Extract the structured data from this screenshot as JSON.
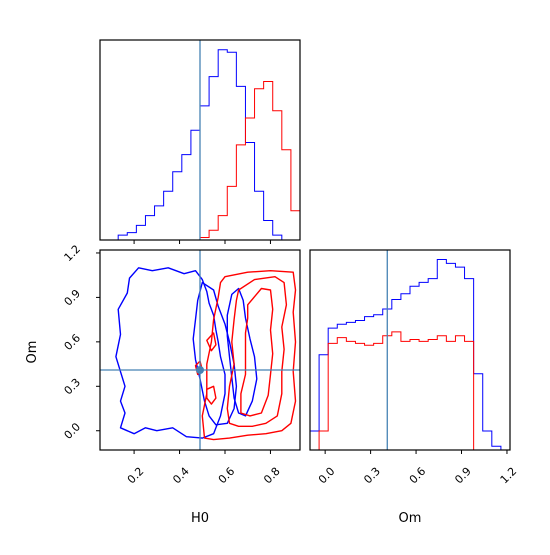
{
  "chart_data": {
    "type": "corner",
    "parameters": [
      "H0",
      "Om"
    ],
    "truth": {
      "H0": 0.49,
      "Om": 0.41
    },
    "truth_color": "#4682b4",
    "series": [
      {
        "color": "#0000ff"
      },
      {
        "color": "#ff0000"
      }
    ],
    "panels": {
      "H0_hist": {
        "xlim": [
          0.05,
          0.93
        ],
        "bin_edges": [
          0.05,
          0.09,
          0.13,
          0.17,
          0.21,
          0.25,
          0.29,
          0.33,
          0.37,
          0.41,
          0.45,
          0.49,
          0.53,
          0.57,
          0.61,
          0.65,
          0.69,
          0.73,
          0.77,
          0.81,
          0.85,
          0.89,
          0.93
        ],
        "blue_counts": [
          0,
          0,
          0.02,
          0.03,
          0.06,
          0.1,
          0.14,
          0.2,
          0.28,
          0.35,
          0.45,
          0.55,
          0.67,
          0.78,
          0.77,
          0.63,
          0.4,
          0.2,
          0.08,
          0.02,
          0,
          0
        ],
        "red_counts": [
          0,
          0,
          0,
          0,
          0,
          0,
          0,
          0,
          0,
          0,
          0,
          0.01,
          0.04,
          0.1,
          0.22,
          0.39,
          0.5,
          0.62,
          0.65,
          0.53,
          0.37,
          0.12
        ]
      },
      "Om_hist": {
        "xlim": [
          -0.1,
          1.22
        ],
        "xticks": [
          0.0,
          0.3,
          0.6,
          0.9,
          1.2
        ],
        "xtick_labels": [
          "0.0",
          "0.3",
          "0.6",
          "0.9",
          "1.2"
        ],
        "bin_edges": [
          -0.1,
          -0.04,
          0.02,
          0.08,
          0.14,
          0.2,
          0.26,
          0.32,
          0.38,
          0.44,
          0.5,
          0.56,
          0.62,
          0.68,
          0.74,
          0.8,
          0.86,
          0.92,
          0.98,
          1.04,
          1.1,
          1.16,
          1.22
        ],
        "blue_counts": [
          0.1,
          0.5,
          0.64,
          0.66,
          0.67,
          0.68,
          0.7,
          0.71,
          0.74,
          0.79,
          0.82,
          0.86,
          0.88,
          0.9,
          1.0,
          0.98,
          0.96,
          0.9,
          0.4,
          0.1,
          0.02,
          0
        ],
        "red_counts": [
          0,
          0.1,
          0.56,
          0.59,
          0.57,
          0.56,
          0.55,
          0.56,
          0.6,
          0.62,
          0.57,
          0.58,
          0.57,
          0.58,
          0.6,
          0.57,
          0.6,
          0.57,
          0,
          0,
          0,
          0
        ]
      },
      "joint": {
        "xlim": [
          0.05,
          0.93
        ],
        "ylim": [
          -0.13,
          1.22
        ],
        "xticks": [
          0.2,
          0.4,
          0.6,
          0.8
        ],
        "xtick_labels": [
          "0.2",
          "0.4",
          "0.6",
          "0.8"
        ],
        "yticks": [
          0.0,
          0.3,
          0.6,
          0.9,
          1.2
        ],
        "ytick_labels": [
          "0.0",
          "0.3",
          "0.6",
          "0.9",
          "1.2"
        ],
        "blue_contours": [
          [
            [
              0.18,
              1.03
            ],
            [
              0.22,
              1.1
            ],
            [
              0.28,
              1.08
            ],
            [
              0.35,
              1.1
            ],
            [
              0.42,
              1.06
            ],
            [
              0.47,
              1.08
            ],
            [
              0.5,
              1.02
            ],
            [
              0.52,
              0.94
            ],
            [
              0.53,
              0.86
            ],
            [
              0.55,
              0.78
            ],
            [
              0.56,
              0.68
            ],
            [
              0.57,
              0.6
            ],
            [
              0.58,
              0.5
            ],
            [
              0.6,
              0.38
            ],
            [
              0.6,
              0.25
            ],
            [
              0.58,
              0.1
            ],
            [
              0.55,
              -0.02
            ],
            [
              0.5,
              -0.05
            ],
            [
              0.43,
              -0.04
            ],
            [
              0.37,
              0.02
            ],
            [
              0.3,
              0.0
            ],
            [
              0.25,
              0.02
            ],
            [
              0.2,
              -0.02
            ],
            [
              0.14,
              0.02
            ],
            [
              0.16,
              0.12
            ],
            [
              0.14,
              0.2
            ],
            [
              0.16,
              0.3
            ],
            [
              0.12,
              0.5
            ],
            [
              0.14,
              0.65
            ],
            [
              0.13,
              0.82
            ],
            [
              0.17,
              0.93
            ]
          ],
          [
            [
              0.5,
              1.0
            ],
            [
              0.55,
              0.95
            ],
            [
              0.57,
              0.84
            ],
            [
              0.6,
              0.72
            ],
            [
              0.62,
              0.6
            ],
            [
              0.64,
              0.45
            ],
            [
              0.65,
              0.3
            ],
            [
              0.64,
              0.15
            ],
            [
              0.61,
              0.05
            ],
            [
              0.56,
              0.04
            ],
            [
              0.53,
              0.1
            ],
            [
              0.51,
              0.2
            ],
            [
              0.49,
              0.35
            ],
            [
              0.47,
              0.48
            ],
            [
              0.46,
              0.62
            ],
            [
              0.47,
              0.75
            ],
            [
              0.48,
              0.88
            ]
          ],
          [
            [
              0.63,
              0.92
            ],
            [
              0.66,
              0.96
            ],
            [
              0.68,
              0.88
            ],
            [
              0.69,
              0.76
            ],
            [
              0.71,
              0.62
            ],
            [
              0.73,
              0.5
            ],
            [
              0.74,
              0.35
            ],
            [
              0.72,
              0.2
            ],
            [
              0.69,
              0.1
            ],
            [
              0.66,
              0.12
            ],
            [
              0.64,
              0.22
            ],
            [
              0.63,
              0.36
            ],
            [
              0.62,
              0.5
            ],
            [
              0.61,
              0.64
            ],
            [
              0.61,
              0.78
            ]
          ]
        ],
        "red_contours": [
          [
            [
              0.6,
              1.04
            ],
            [
              0.7,
              1.07
            ],
            [
              0.8,
              1.08
            ],
            [
              0.9,
              1.07
            ],
            [
              0.91,
              0.95
            ],
            [
              0.9,
              0.8
            ],
            [
              0.91,
              0.6
            ],
            [
              0.9,
              0.4
            ],
            [
              0.91,
              0.2
            ],
            [
              0.89,
              0.05
            ],
            [
              0.85,
              0.0
            ],
            [
              0.78,
              -0.02
            ],
            [
              0.7,
              -0.03
            ],
            [
              0.62,
              -0.05
            ],
            [
              0.55,
              -0.06
            ],
            [
              0.51,
              -0.05
            ],
            [
              0.5,
              0.1
            ],
            [
              0.52,
              0.25
            ],
            [
              0.52,
              0.45
            ],
            [
              0.54,
              0.6
            ],
            [
              0.55,
              0.75
            ],
            [
              0.57,
              0.9
            ],
            [
              0.58,
              1.0
            ]
          ],
          [
            [
              0.66,
              0.95
            ],
            [
              0.73,
              1.02
            ],
            [
              0.82,
              1.04
            ],
            [
              0.86,
              1.0
            ],
            [
              0.87,
              0.85
            ],
            [
              0.85,
              0.7
            ],
            [
              0.86,
              0.55
            ],
            [
              0.85,
              0.4
            ],
            [
              0.85,
              0.25
            ],
            [
              0.83,
              0.1
            ],
            [
              0.78,
              0.05
            ],
            [
              0.72,
              0.03
            ],
            [
              0.66,
              0.03
            ],
            [
              0.62,
              0.05
            ],
            [
              0.61,
              0.15
            ],
            [
              0.62,
              0.3
            ],
            [
              0.64,
              0.45
            ],
            [
              0.63,
              0.6
            ],
            [
              0.64,
              0.75
            ],
            [
              0.65,
              0.88
            ]
          ],
          [
            [
              0.7,
              0.85
            ],
            [
              0.76,
              0.96
            ],
            [
              0.8,
              0.95
            ],
            [
              0.81,
              0.82
            ],
            [
              0.8,
              0.68
            ],
            [
              0.81,
              0.52
            ],
            [
              0.8,
              0.38
            ],
            [
              0.79,
              0.24
            ],
            [
              0.76,
              0.12
            ],
            [
              0.71,
              0.1
            ],
            [
              0.67,
              0.12
            ],
            [
              0.67,
              0.25
            ],
            [
              0.69,
              0.38
            ],
            [
              0.69,
              0.52
            ],
            [
              0.69,
              0.66
            ],
            [
              0.7,
              0.76
            ]
          ],
          [
            [
              0.52,
              0.61
            ],
            [
              0.55,
              0.66
            ],
            [
              0.56,
              0.58
            ],
            [
              0.54,
              0.54
            ]
          ],
          [
            [
              0.52,
              0.28
            ],
            [
              0.55,
              0.3
            ],
            [
              0.56,
              0.22
            ],
            [
              0.54,
              0.18
            ],
            [
              0.52,
              0.22
            ]
          ],
          [
            [
              0.47,
              0.44
            ],
            [
              0.49,
              0.47
            ],
            [
              0.5,
              0.41
            ],
            [
              0.48,
              0.38
            ]
          ]
        ]
      }
    }
  }
}
